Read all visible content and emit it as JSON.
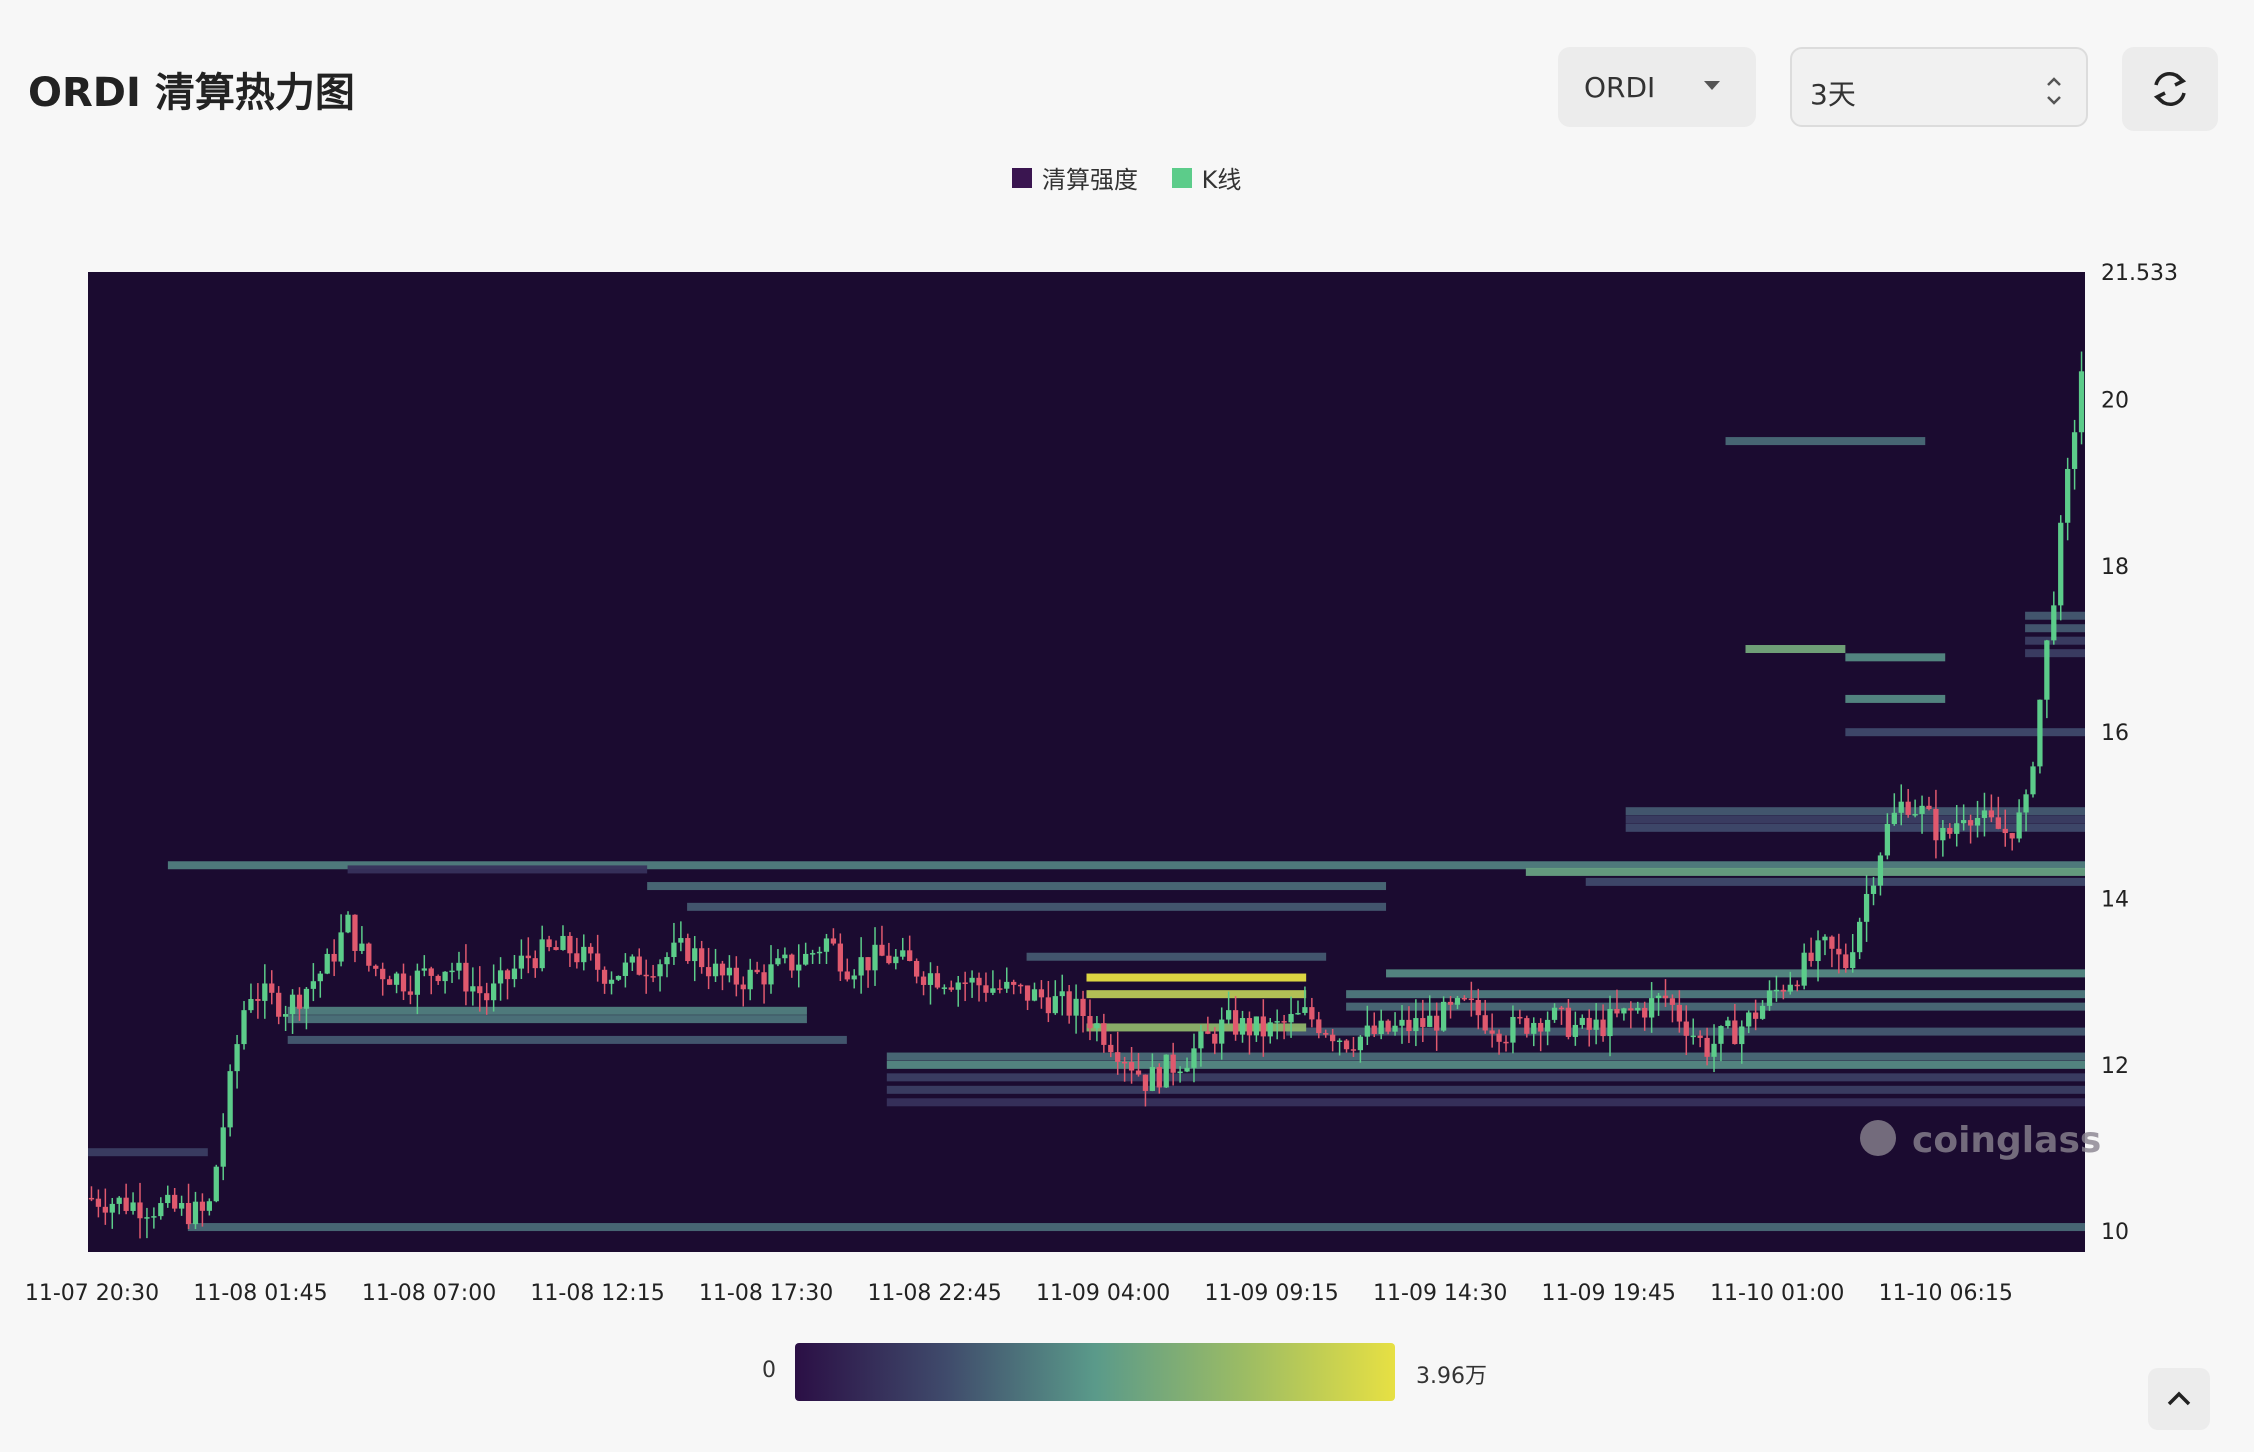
{
  "header": {
    "title": "ORDI 清算热力图",
    "asset_select": "ORDI",
    "range_select": "3天"
  },
  "legend": [
    {
      "label": "清算强度",
      "color": "#3a1550"
    },
    {
      "label": "K线",
      "color": "#5ccc8a"
    }
  ],
  "colorbar": {
    "min_label": "0",
    "max_label": "3.96万"
  },
  "watermark": "coinglass",
  "chart_data": {
    "type": "heatmap",
    "title": "",
    "x_ticks": [
      "11-07 20:30",
      "11-08 01:45",
      "11-08 07:00",
      "11-08 12:15",
      "11-08 17:30",
      "11-08 22:45",
      "11-09 04:00",
      "11-09 09:15",
      "11-09 14:30",
      "11-09 19:45",
      "11-10 01:00",
      "11-10 06:15"
    ],
    "y_ticks": [
      "21.533",
      "20",
      "18",
      "16",
      "14",
      "12",
      "10"
    ],
    "ylim": [
      9.75,
      21.533
    ],
    "background_color": "#1b0b30",
    "up_color": "#5ccc8a",
    "down_color": "#e0596e",
    "colorscale": [
      "#2b0f45",
      "#3f4a6b",
      "#5a9a8a",
      "#9cbc64",
      "#e7e043"
    ],
    "liquidation_bands": [
      {
        "price": 14.4,
        "start": 0.04,
        "end": 1.0,
        "intensity": 0.42
      },
      {
        "price": 14.32,
        "start": 0.72,
        "end": 1.0,
        "intensity": 0.55
      },
      {
        "price": 14.2,
        "start": 0.75,
        "end": 1.0,
        "intensity": 0.25
      },
      {
        "price": 14.85,
        "start": 0.77,
        "end": 1.0,
        "intensity": 0.25
      },
      {
        "price": 14.95,
        "start": 0.77,
        "end": 1.0,
        "intensity": 0.2
      },
      {
        "price": 15.05,
        "start": 0.77,
        "end": 1.0,
        "intensity": 0.3
      },
      {
        "price": 13.1,
        "start": 0.65,
        "end": 1.0,
        "intensity": 0.45
      },
      {
        "price": 12.85,
        "start": 0.63,
        "end": 1.0,
        "intensity": 0.4
      },
      {
        "price": 12.7,
        "start": 0.63,
        "end": 1.0,
        "intensity": 0.35
      },
      {
        "price": 12.4,
        "start": 0.6,
        "end": 1.0,
        "intensity": 0.3
      },
      {
        "price": 12.1,
        "start": 0.4,
        "end": 1.0,
        "intensity": 0.35
      },
      {
        "price": 12.0,
        "start": 0.4,
        "end": 1.0,
        "intensity": 0.45
      },
      {
        "price": 11.85,
        "start": 0.4,
        "end": 1.0,
        "intensity": 0.2
      },
      {
        "price": 11.7,
        "start": 0.4,
        "end": 1.0,
        "intensity": 0.2
      },
      {
        "price": 11.55,
        "start": 0.4,
        "end": 1.0,
        "intensity": 0.15
      },
      {
        "price": 12.65,
        "start": 0.1,
        "end": 0.36,
        "intensity": 0.42
      },
      {
        "price": 12.55,
        "start": 0.1,
        "end": 0.36,
        "intensity": 0.38
      },
      {
        "price": 12.3,
        "start": 0.1,
        "end": 0.38,
        "intensity": 0.3
      },
      {
        "price": 13.9,
        "start": 0.3,
        "end": 0.65,
        "intensity": 0.3
      },
      {
        "price": 14.15,
        "start": 0.28,
        "end": 0.65,
        "intensity": 0.35
      },
      {
        "price": 14.35,
        "start": 0.13,
        "end": 0.28,
        "intensity": 0.15
      },
      {
        "price": 13.05,
        "start": 0.5,
        "end": 0.61,
        "intensity": 1.0
      },
      {
        "price": 12.85,
        "start": 0.5,
        "end": 0.61,
        "intensity": 0.85
      },
      {
        "price": 12.45,
        "start": 0.5,
        "end": 0.61,
        "intensity": 0.7
      },
      {
        "price": 13.3,
        "start": 0.47,
        "end": 0.62,
        "intensity": 0.3
      },
      {
        "price": 10.05,
        "start": 0.05,
        "end": 1.0,
        "intensity": 0.35
      },
      {
        "price": 10.95,
        "start": 0.0,
        "end": 0.06,
        "intensity": 0.2
      },
      {
        "price": 19.5,
        "start": 0.82,
        "end": 0.92,
        "intensity": 0.35
      },
      {
        "price": 17.0,
        "start": 0.83,
        "end": 0.88,
        "intensity": 0.6
      },
      {
        "price": 16.9,
        "start": 0.88,
        "end": 0.93,
        "intensity": 0.45
      },
      {
        "price": 16.4,
        "start": 0.88,
        "end": 0.93,
        "intensity": 0.45
      },
      {
        "price": 16.0,
        "start": 0.88,
        "end": 1.0,
        "intensity": 0.25
      },
      {
        "price": 17.4,
        "start": 0.97,
        "end": 1.0,
        "intensity": 0.3
      },
      {
        "price": 17.25,
        "start": 0.97,
        "end": 1.0,
        "intensity": 0.3
      },
      {
        "price": 17.1,
        "start": 0.97,
        "end": 1.0,
        "intensity": 0.2
      },
      {
        "price": 16.95,
        "start": 0.97,
        "end": 1.0,
        "intensity": 0.2
      }
    ],
    "candles_close_path": [
      [
        0.0,
        10.4
      ],
      [
        0.03,
        10.3
      ],
      [
        0.06,
        10.2
      ],
      [
        0.065,
        10.9
      ],
      [
        0.075,
        12.3
      ],
      [
        0.08,
        12.9
      ],
      [
        0.1,
        12.7
      ],
      [
        0.12,
        13.2
      ],
      [
        0.13,
        13.7
      ],
      [
        0.14,
        13.2
      ],
      [
        0.16,
        13.0
      ],
      [
        0.18,
        13.2
      ],
      [
        0.2,
        12.8
      ],
      [
        0.22,
        13.3
      ],
      [
        0.24,
        13.4
      ],
      [
        0.26,
        13.1
      ],
      [
        0.28,
        13.2
      ],
      [
        0.3,
        13.4
      ],
      [
        0.32,
        13.0
      ],
      [
        0.34,
        13.1
      ],
      [
        0.36,
        13.3
      ],
      [
        0.37,
        13.5
      ],
      [
        0.38,
        13.2
      ],
      [
        0.4,
        13.3
      ],
      [
        0.42,
        13.1
      ],
      [
        0.44,
        13.0
      ],
      [
        0.46,
        12.9
      ],
      [
        0.48,
        12.8
      ],
      [
        0.5,
        12.6
      ],
      [
        0.52,
        12.1
      ],
      [
        0.53,
        11.8
      ],
      [
        0.55,
        12.1
      ],
      [
        0.57,
        12.5
      ],
      [
        0.59,
        12.4
      ],
      [
        0.61,
        12.6
      ],
      [
        0.63,
        12.3
      ],
      [
        0.65,
        12.4
      ],
      [
        0.67,
        12.5
      ],
      [
        0.69,
        12.7
      ],
      [
        0.71,
        12.4
      ],
      [
        0.73,
        12.6
      ],
      [
        0.75,
        12.4
      ],
      [
        0.77,
        12.6
      ],
      [
        0.79,
        12.8
      ],
      [
        0.81,
        12.2
      ],
      [
        0.83,
        12.5
      ],
      [
        0.85,
        13.0
      ],
      [
        0.86,
        13.2
      ],
      [
        0.87,
        13.4
      ],
      [
        0.88,
        13.2
      ],
      [
        0.89,
        14.0
      ],
      [
        0.9,
        14.8
      ],
      [
        0.91,
        15.2
      ],
      [
        0.92,
        15.0
      ],
      [
        0.93,
        14.7
      ],
      [
        0.94,
        15.1
      ],
      [
        0.95,
        14.9
      ],
      [
        0.96,
        14.8
      ],
      [
        0.97,
        15.0
      ]
    ]
  }
}
